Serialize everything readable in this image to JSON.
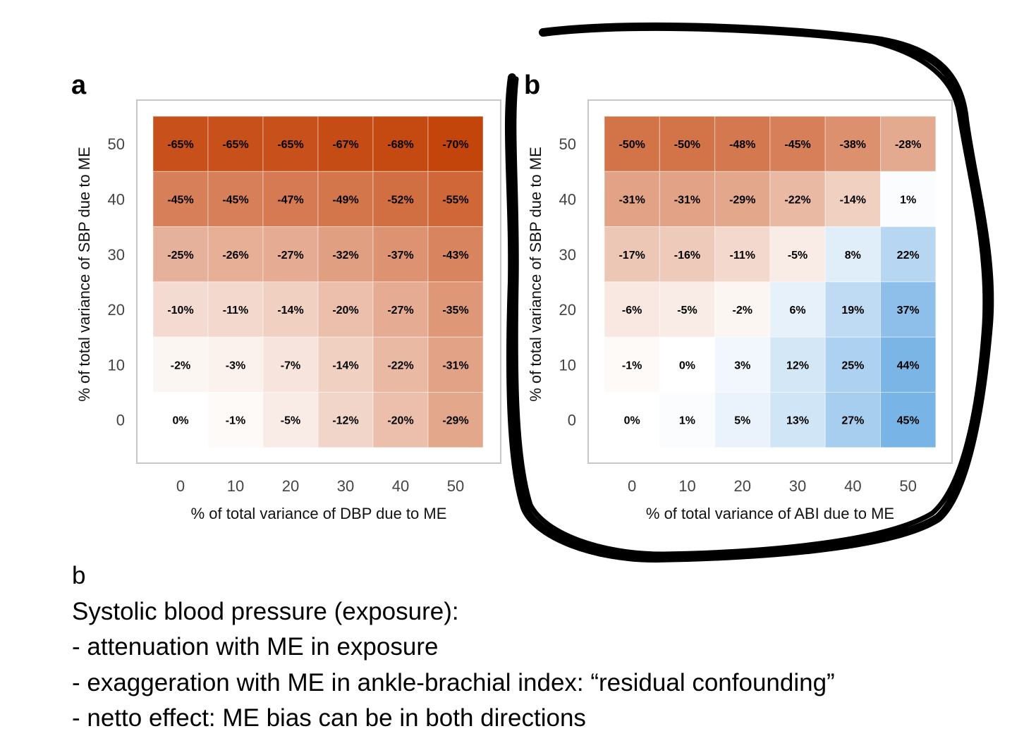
{
  "chart_data": [
    {
      "type": "heatmap",
      "panel_label": "a",
      "xlabel": "%  of total variance of DBP due to ME",
      "ylabel": "%  of total variance of SBP due to ME",
      "x": [
        0,
        10,
        20,
        30,
        40,
        50
      ],
      "y": [
        50,
        40,
        30,
        20,
        10,
        0
      ],
      "x_tick_labels": [
        "0",
        "10",
        "20",
        "30",
        "40",
        "50"
      ],
      "y_tick_labels": [
        "50",
        "40",
        "30",
        "20",
        "10",
        "0"
      ],
      "values": [
        [
          -65,
          -65,
          -65,
          -67,
          -68,
          -70
        ],
        [
          -45,
          -45,
          -47,
          -49,
          -52,
          -55
        ],
        [
          -25,
          -26,
          -27,
          -32,
          -37,
          -43
        ],
        [
          -10,
          -11,
          -14,
          -20,
          -27,
          -35
        ],
        [
          -2,
          -3,
          -7,
          -14,
          -22,
          -31
        ],
        [
          0,
          -1,
          -5,
          -12,
          -20,
          -29
        ]
      ],
      "cell_labels": [
        [
          "-65%",
          "-65%",
          "-65%",
          "-67%",
          "-68%",
          "-70%"
        ],
        [
          "-45%",
          "-45%",
          "-47%",
          "-49%",
          "-52%",
          "-55%"
        ],
        [
          "-25%",
          "-26%",
          "-27%",
          "-32%",
          "-37%",
          "-43%"
        ],
        [
          "-10%",
          "-11%",
          "-14%",
          "-20%",
          "-27%",
          "-35%"
        ],
        [
          "-2%",
          "-3%",
          "-7%",
          "-14%",
          "-22%",
          "-31%"
        ],
        [
          "0%",
          "-1%",
          "-5%",
          "-12%",
          "-20%",
          "-29%"
        ]
      ],
      "colors": {
        "negative": "#c4450c",
        "positive": "#78b4e6",
        "neutral": "#ffffff",
        "grid": "#c8c8c8"
      }
    },
    {
      "type": "heatmap",
      "panel_label": "b",
      "xlabel": "%  of total variance of ABI due to ME",
      "ylabel": "%  of total variance of SBP due to ME",
      "x": [
        0,
        10,
        20,
        30,
        40,
        50
      ],
      "y": [
        50,
        40,
        30,
        20,
        10,
        0
      ],
      "x_tick_labels": [
        "0",
        "10",
        "20",
        "30",
        "40",
        "50"
      ],
      "y_tick_labels": [
        "50",
        "40",
        "30",
        "20",
        "10",
        "0"
      ],
      "values": [
        [
          -50,
          -50,
          -48,
          -45,
          -38,
          -28
        ],
        [
          -31,
          -31,
          -29,
          -22,
          -14,
          1
        ],
        [
          -17,
          -16,
          -11,
          -5,
          8,
          22
        ],
        [
          -6,
          -5,
          -2,
          6,
          19,
          37
        ],
        [
          -1,
          0,
          3,
          12,
          25,
          44
        ],
        [
          0,
          1,
          5,
          13,
          27,
          45
        ]
      ],
      "cell_labels": [
        [
          "-50%",
          "-50%",
          "-48%",
          "-45%",
          "-38%",
          "-28%"
        ],
        [
          "-31%",
          "-31%",
          "-29%",
          "-22%",
          "-14%",
          "1%"
        ],
        [
          "-17%",
          "-16%",
          "-11%",
          "-5%",
          "8%",
          "22%"
        ],
        [
          "-6%",
          "-5%",
          "-2%",
          "6%",
          "19%",
          "37%"
        ],
        [
          "-1%",
          "0%",
          "3%",
          "12%",
          "25%",
          "44%"
        ],
        [
          "0%",
          "1%",
          "5%",
          "13%",
          "27%",
          "45%"
        ]
      ],
      "colors": {
        "negative": "#c4450c",
        "positive": "#78b4e6",
        "neutral": "#ffffff",
        "grid": "#c8c8c8"
      },
      "annotation": "hand-drawn black loop encircling panel b"
    }
  ],
  "caption": {
    "lines": [
      "b",
      "Systolic blood pressure (exposure):",
      "- attenuation with ME in exposure",
      "- exaggeration with ME in ankle-brachial index: “residual confounding”",
      "- netto effect: ME bias can be in both directions"
    ]
  }
}
